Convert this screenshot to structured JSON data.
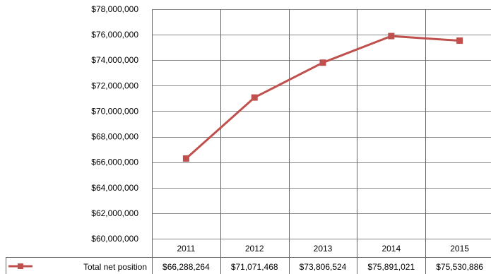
{
  "chart_data": {
    "type": "line",
    "categories": [
      "2011",
      "2012",
      "2013",
      "2014",
      "2015"
    ],
    "series": [
      {
        "name": "Total net position",
        "values": [
          66288264,
          71071468,
          73806524,
          75891021,
          75530886
        ],
        "value_labels": [
          "$66,288,264",
          "$71,071,468",
          "$73,806,524",
          "$75,891,021",
          "$75,530,886"
        ],
        "color": "#c0504d",
        "marker": "square"
      }
    ],
    "ylim": [
      60000000,
      78000000
    ],
    "yticks": [
      60000000,
      62000000,
      64000000,
      66000000,
      68000000,
      70000000,
      72000000,
      74000000,
      76000000,
      78000000
    ],
    "ytick_labels": [
      "$60,000,000",
      "$62,000,000",
      "$64,000,000",
      "$66,000,000",
      "$68,000,000",
      "$70,000,000",
      "$72,000,000",
      "$74,000,000",
      "$76,000,000",
      "$78,000,000"
    ],
    "grid": true,
    "data_table": true,
    "gridline_color": "#888888",
    "table_border_color": "#666666"
  }
}
